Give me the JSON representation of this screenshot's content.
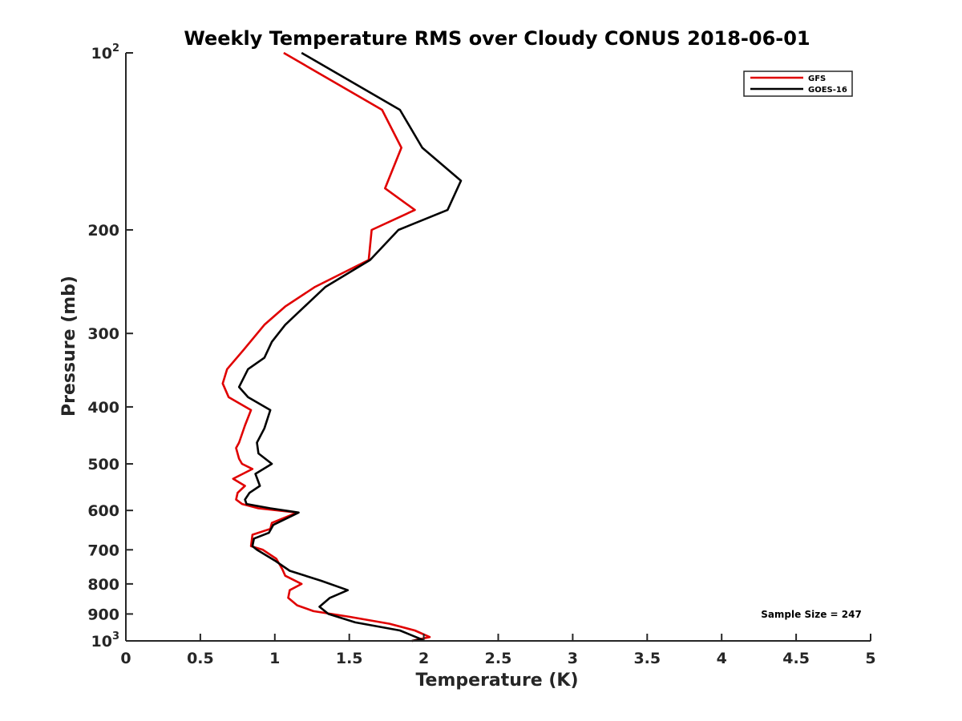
{
  "chart_data": {
    "type": "line",
    "title": "Weekly Temperature RMS over Cloudy CONUS 2018-06-01",
    "xlabel": "Temperature (K)",
    "ylabel": "Pressure (mb)",
    "xlim": [
      0,
      5
    ],
    "ylim": [
      100,
      1000
    ],
    "y_scale": "log",
    "y_reversed": true,
    "grid": false,
    "legend_position": "top-right",
    "x_ticks": [
      "0",
      "0.5",
      "1",
      "1.5",
      "2",
      "2.5",
      "3",
      "3.5",
      "4",
      "4.5",
      "5"
    ],
    "x_tick_values": [
      0,
      0.5,
      1,
      1.5,
      2,
      2.5,
      3,
      3.5,
      4,
      4.5,
      5
    ],
    "y_ticks": [
      {
        "value": 100,
        "base": "10",
        "exp": "2"
      },
      {
        "value": 200,
        "label": "200"
      },
      {
        "value": 300,
        "label": "300"
      },
      {
        "value": 400,
        "label": "400"
      },
      {
        "value": 500,
        "label": "500"
      },
      {
        "value": 600,
        "label": "600"
      },
      {
        "value": 700,
        "label": "700"
      },
      {
        "value": 800,
        "label": "800"
      },
      {
        "value": 900,
        "label": "900"
      },
      {
        "value": 1000,
        "base": "10",
        "exp": "3"
      }
    ],
    "series": [
      {
        "name": "GFS",
        "color": "#e00000",
        "points": [
          [
            1.06,
            100
          ],
          [
            1.72,
            125
          ],
          [
            1.85,
            145
          ],
          [
            1.74,
            170
          ],
          [
            1.94,
            185
          ],
          [
            1.65,
            200
          ],
          [
            1.63,
            225
          ],
          [
            1.27,
            250
          ],
          [
            1.07,
            270
          ],
          [
            0.93,
            290
          ],
          [
            0.79,
            320
          ],
          [
            0.68,
            345
          ],
          [
            0.65,
            365
          ],
          [
            0.69,
            385
          ],
          [
            0.84,
            405
          ],
          [
            0.8,
            430
          ],
          [
            0.76,
            460
          ],
          [
            0.74,
            470
          ],
          [
            0.76,
            490
          ],
          [
            0.78,
            500
          ],
          [
            0.85,
            510
          ],
          [
            0.72,
            530
          ],
          [
            0.8,
            545
          ],
          [
            0.75,
            560
          ],
          [
            0.74,
            575
          ],
          [
            0.78,
            585
          ],
          [
            0.89,
            595
          ],
          [
            1.15,
            605
          ],
          [
            0.98,
            630
          ],
          [
            0.97,
            645
          ],
          [
            0.85,
            660
          ],
          [
            0.84,
            690
          ],
          [
            0.92,
            700
          ],
          [
            1.01,
            725
          ],
          [
            1.05,
            755
          ],
          [
            1.07,
            775
          ],
          [
            1.18,
            800
          ],
          [
            1.1,
            820
          ],
          [
            1.09,
            845
          ],
          [
            1.15,
            870
          ],
          [
            1.26,
            890
          ],
          [
            1.5,
            910
          ],
          [
            1.77,
            935
          ],
          [
            1.94,
            960
          ],
          [
            2.04,
            985
          ],
          [
            1.92,
            1000
          ]
        ]
      },
      {
        "name": "GOES-16",
        "color": "#000000",
        "points": [
          [
            1.18,
            100
          ],
          [
            1.84,
            125
          ],
          [
            1.99,
            145
          ],
          [
            2.25,
            165
          ],
          [
            2.16,
            185
          ],
          [
            1.83,
            200
          ],
          [
            1.64,
            225
          ],
          [
            1.34,
            250
          ],
          [
            1.2,
            270
          ],
          [
            1.07,
            290
          ],
          [
            0.98,
            310
          ],
          [
            0.93,
            330
          ],
          [
            0.82,
            345
          ],
          [
            0.76,
            370
          ],
          [
            0.82,
            385
          ],
          [
            0.97,
            405
          ],
          [
            0.93,
            435
          ],
          [
            0.88,
            460
          ],
          [
            0.89,
            480
          ],
          [
            0.98,
            500
          ],
          [
            0.87,
            520
          ],
          [
            0.9,
            545
          ],
          [
            0.83,
            560
          ],
          [
            0.8,
            575
          ],
          [
            0.81,
            585
          ],
          [
            0.97,
            595
          ],
          [
            1.16,
            605
          ],
          [
            0.99,
            635
          ],
          [
            0.96,
            655
          ],
          [
            0.86,
            670
          ],
          [
            0.85,
            690
          ],
          [
            0.88,
            700
          ],
          [
            1.0,
            730
          ],
          [
            1.1,
            760
          ],
          [
            1.31,
            790
          ],
          [
            1.49,
            820
          ],
          [
            1.37,
            845
          ],
          [
            1.3,
            875
          ],
          [
            1.36,
            900
          ],
          [
            1.54,
            930
          ],
          [
            1.84,
            960
          ],
          [
            1.99,
            995
          ],
          [
            1.92,
            1000
          ]
        ]
      }
    ],
    "annotation": "Sample Size = 247"
  }
}
